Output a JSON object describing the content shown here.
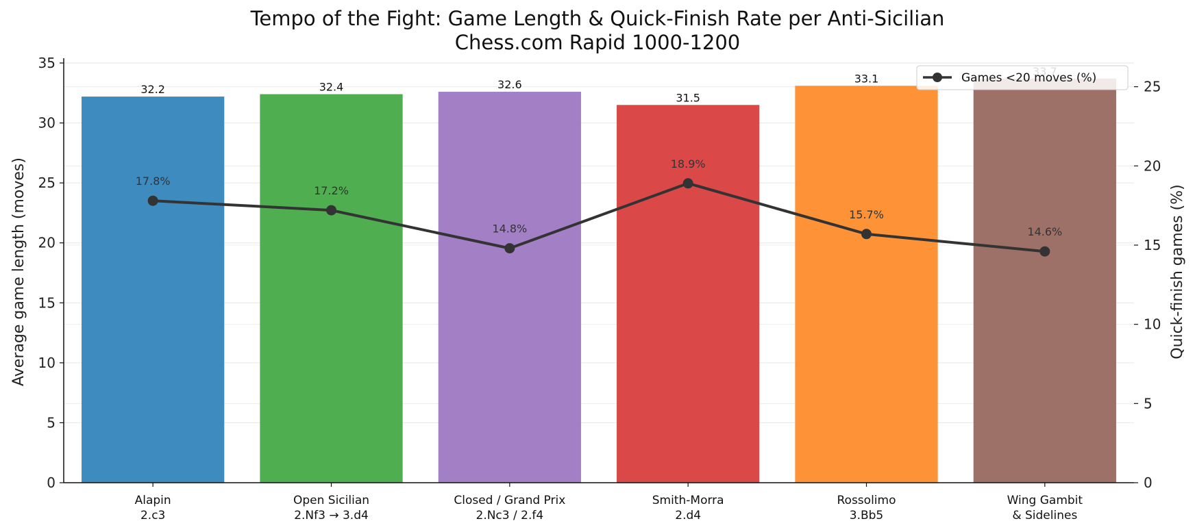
{
  "chart_data": {
    "type": "bar",
    "title": "Tempo of the Fight: Game Length & Quick-Finish Rate per Anti-Sicilian",
    "subtitle": "Chess.com Rapid 1000-1200",
    "categories": [
      [
        "Alapin",
        "2.c3"
      ],
      [
        "Open Sicilian",
        "2.Nf3 → 3.d4"
      ],
      [
        "Closed / Grand Prix",
        "2.Nc3 / 2.f4"
      ],
      [
        "Smith-Morra",
        "2.d4"
      ],
      [
        "Rossolimo",
        "3.Bb5"
      ],
      [
        "Wing Gambit",
        "& Sidelines"
      ]
    ],
    "series": [
      {
        "kind": "bar",
        "axis": "left",
        "values": [
          32.2,
          32.4,
          32.6,
          31.5,
          33.1,
          33.7
        ],
        "value_labels": [
          "32.2",
          "32.4",
          "32.6",
          "31.5",
          "33.1",
          "33.7"
        ],
        "colors": [
          "#3e8bbf",
          "#4fae4f",
          "#a37fc6",
          "#db4848",
          "#fd9236",
          "#9e7168"
        ]
      },
      {
        "kind": "line",
        "axis": "right",
        "name": "Games <20 moves (%)",
        "values": [
          17.8,
          17.2,
          14.8,
          18.9,
          15.7,
          14.6
        ],
        "value_labels": [
          "17.8%",
          "17.2%",
          "14.8%",
          "18.9%",
          "15.7%",
          "14.6%"
        ],
        "color": "#333333"
      }
    ],
    "ylabel": "Average game length (moves)",
    "ylabel_right": "Quick-finish games (%)",
    "ylim": [
      0,
      35.4
    ],
    "ylim_right": [
      0,
      26.8
    ],
    "yticks": [
      0,
      5,
      10,
      15,
      20,
      25,
      30,
      35
    ],
    "yticks_right": [
      0,
      5,
      10,
      15,
      20,
      25
    ],
    "grid": true,
    "legend_position": "top-right"
  }
}
